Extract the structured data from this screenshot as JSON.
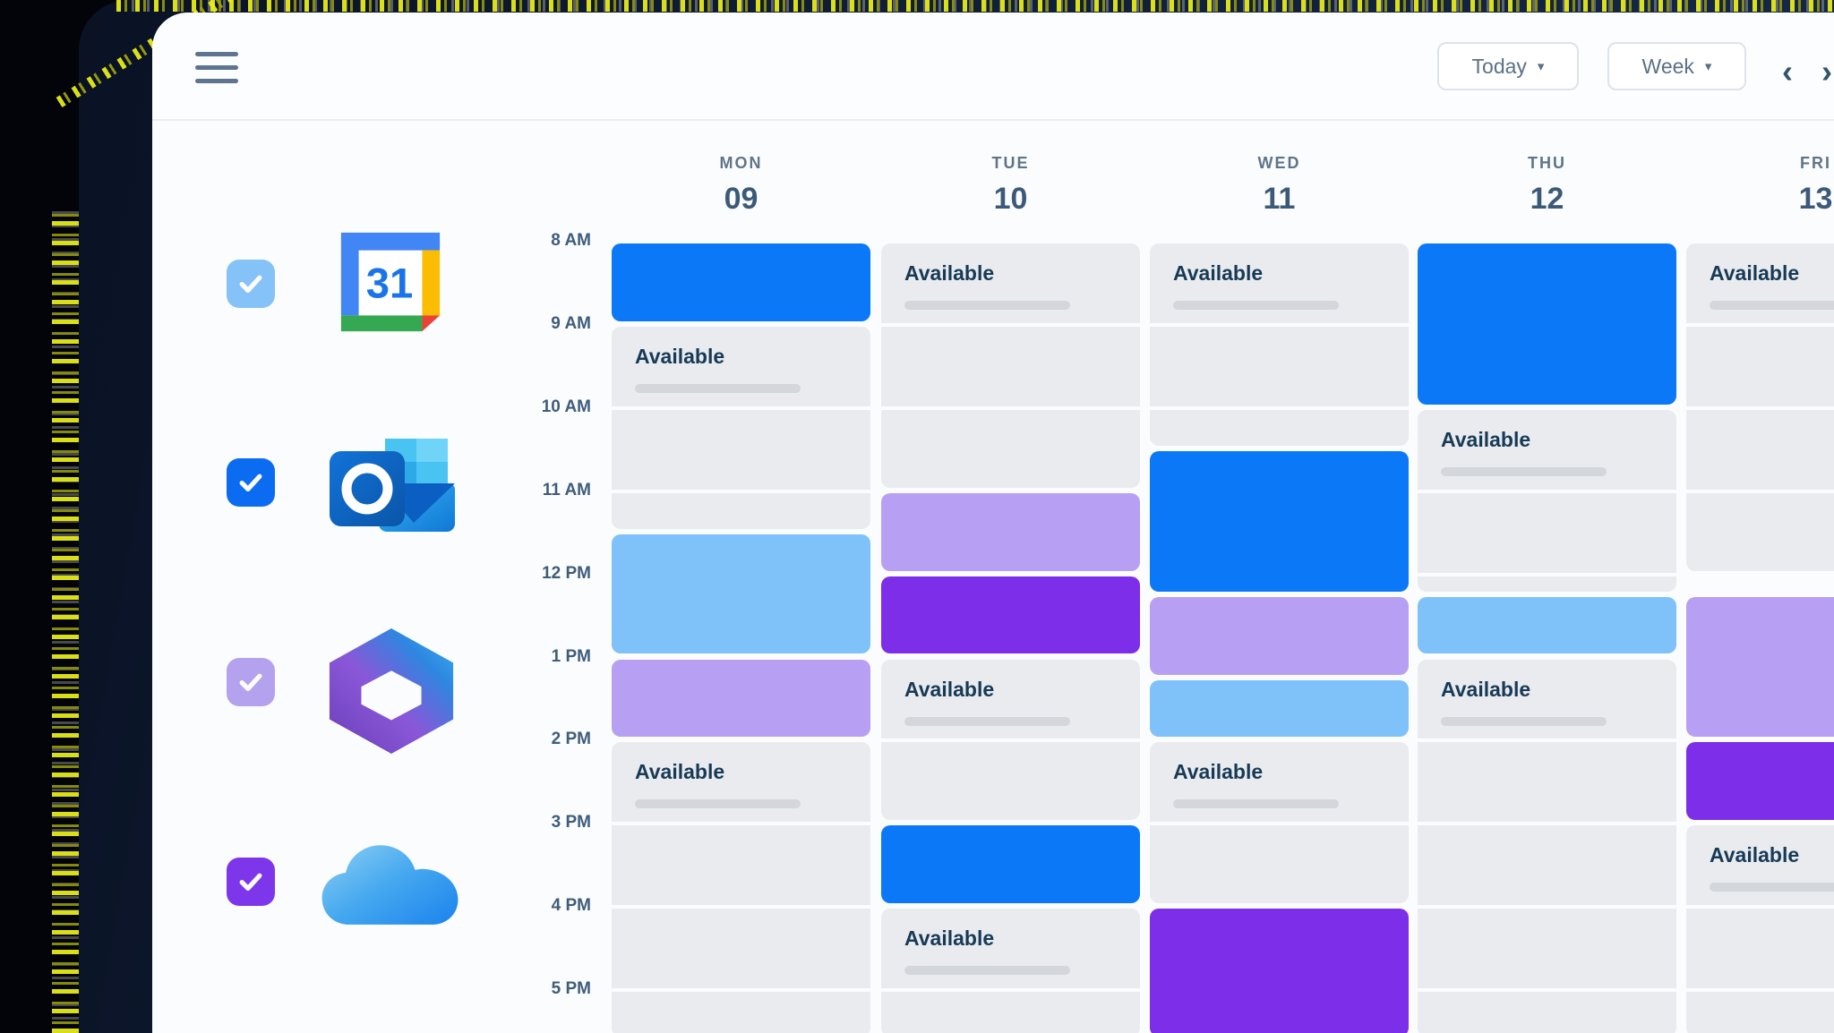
{
  "topbar": {
    "today_label": "Today",
    "week_label": "Week",
    "dropdown_caret": "▾",
    "prev_icon": "‹",
    "next_icon": "›"
  },
  "sources": [
    {
      "name": "google-calendar",
      "checked": true,
      "checkbox_color": "#85c2f8",
      "icon_text": "31"
    },
    {
      "name": "outlook",
      "checked": true,
      "checkbox_color": "#0b6cf2"
    },
    {
      "name": "microsoft-365",
      "checked": true,
      "checkbox_color": "#b4a2ef"
    },
    {
      "name": "icloud",
      "checked": true,
      "checkbox_color": "#7e36ea"
    }
  ],
  "calendar": {
    "days": [
      {
        "label": "MON",
        "date": "09"
      },
      {
        "label": "TUE",
        "date": "10"
      },
      {
        "label": "WED",
        "date": "11"
      },
      {
        "label": "THU",
        "date": "12"
      },
      {
        "label": "FRI",
        "date": "13"
      }
    ],
    "times": [
      "8 AM",
      "9 AM",
      "10 AM",
      "11 AM",
      "12 PM",
      "1 PM",
      "2 PM",
      "3 PM",
      "4 PM",
      "5 PM"
    ],
    "available_label": "Available",
    "event_colors": {
      "blue": "#0b78f7",
      "lightblue": "#7fc1f9",
      "lavender": "#b7a0f3",
      "purple": "#7c2ee8",
      "available_gray": "#e9ebef"
    },
    "columns": [
      {
        "day": "MON",
        "blocks": [
          {
            "type": "event",
            "color": "blue",
            "start": 0,
            "end": 1
          },
          {
            "type": "available",
            "start": 1,
            "end": 3.5,
            "label": true
          },
          {
            "type": "event",
            "color": "lightblue",
            "start": 3.5,
            "end": 5
          },
          {
            "type": "event",
            "color": "lavender",
            "start": 5,
            "end": 6
          },
          {
            "type": "available",
            "start": 6,
            "end": 9.6,
            "label": true
          }
        ]
      },
      {
        "day": "TUE",
        "blocks": [
          {
            "type": "available",
            "start": 0,
            "end": 3,
            "label": true
          },
          {
            "type": "event",
            "color": "lavender",
            "start": 3,
            "end": 4
          },
          {
            "type": "event",
            "color": "purple",
            "start": 4,
            "end": 5
          },
          {
            "type": "available",
            "start": 5,
            "end": 7,
            "label": true
          },
          {
            "type": "event",
            "color": "blue",
            "start": 7,
            "end": 8
          },
          {
            "type": "available",
            "start": 8,
            "end": 9.6,
            "label": true
          }
        ]
      },
      {
        "day": "WED",
        "blocks": [
          {
            "type": "available",
            "start": 0,
            "end": 2.5,
            "label": true
          },
          {
            "type": "event",
            "color": "blue",
            "start": 2.5,
            "end": 4.25
          },
          {
            "type": "event",
            "color": "lavender",
            "start": 4.25,
            "end": 5.25
          },
          {
            "type": "event",
            "color": "lightblue",
            "start": 5.25,
            "end": 6
          },
          {
            "type": "available",
            "start": 6,
            "end": 8,
            "label": true
          },
          {
            "type": "event",
            "color": "purple",
            "start": 8,
            "end": 9.6
          }
        ]
      },
      {
        "day": "THU",
        "blocks": [
          {
            "type": "event",
            "color": "blue",
            "start": 0,
            "end": 2
          },
          {
            "type": "available",
            "start": 2,
            "end": 4.25,
            "label": true
          },
          {
            "type": "event",
            "color": "lightblue",
            "start": 4.25,
            "end": 5
          },
          {
            "type": "available",
            "start": 5,
            "end": 9.6,
            "label": true
          }
        ]
      },
      {
        "day": "FRI",
        "blocks": [
          {
            "type": "available",
            "start": 0,
            "end": 4,
            "label": true
          },
          {
            "type": "event",
            "color": "lavender",
            "start": 4.25,
            "end": 6
          },
          {
            "type": "event",
            "color": "purple",
            "start": 6,
            "end": 7
          },
          {
            "type": "available",
            "start": 7,
            "end": 9.6,
            "label": true
          }
        ]
      }
    ]
  }
}
